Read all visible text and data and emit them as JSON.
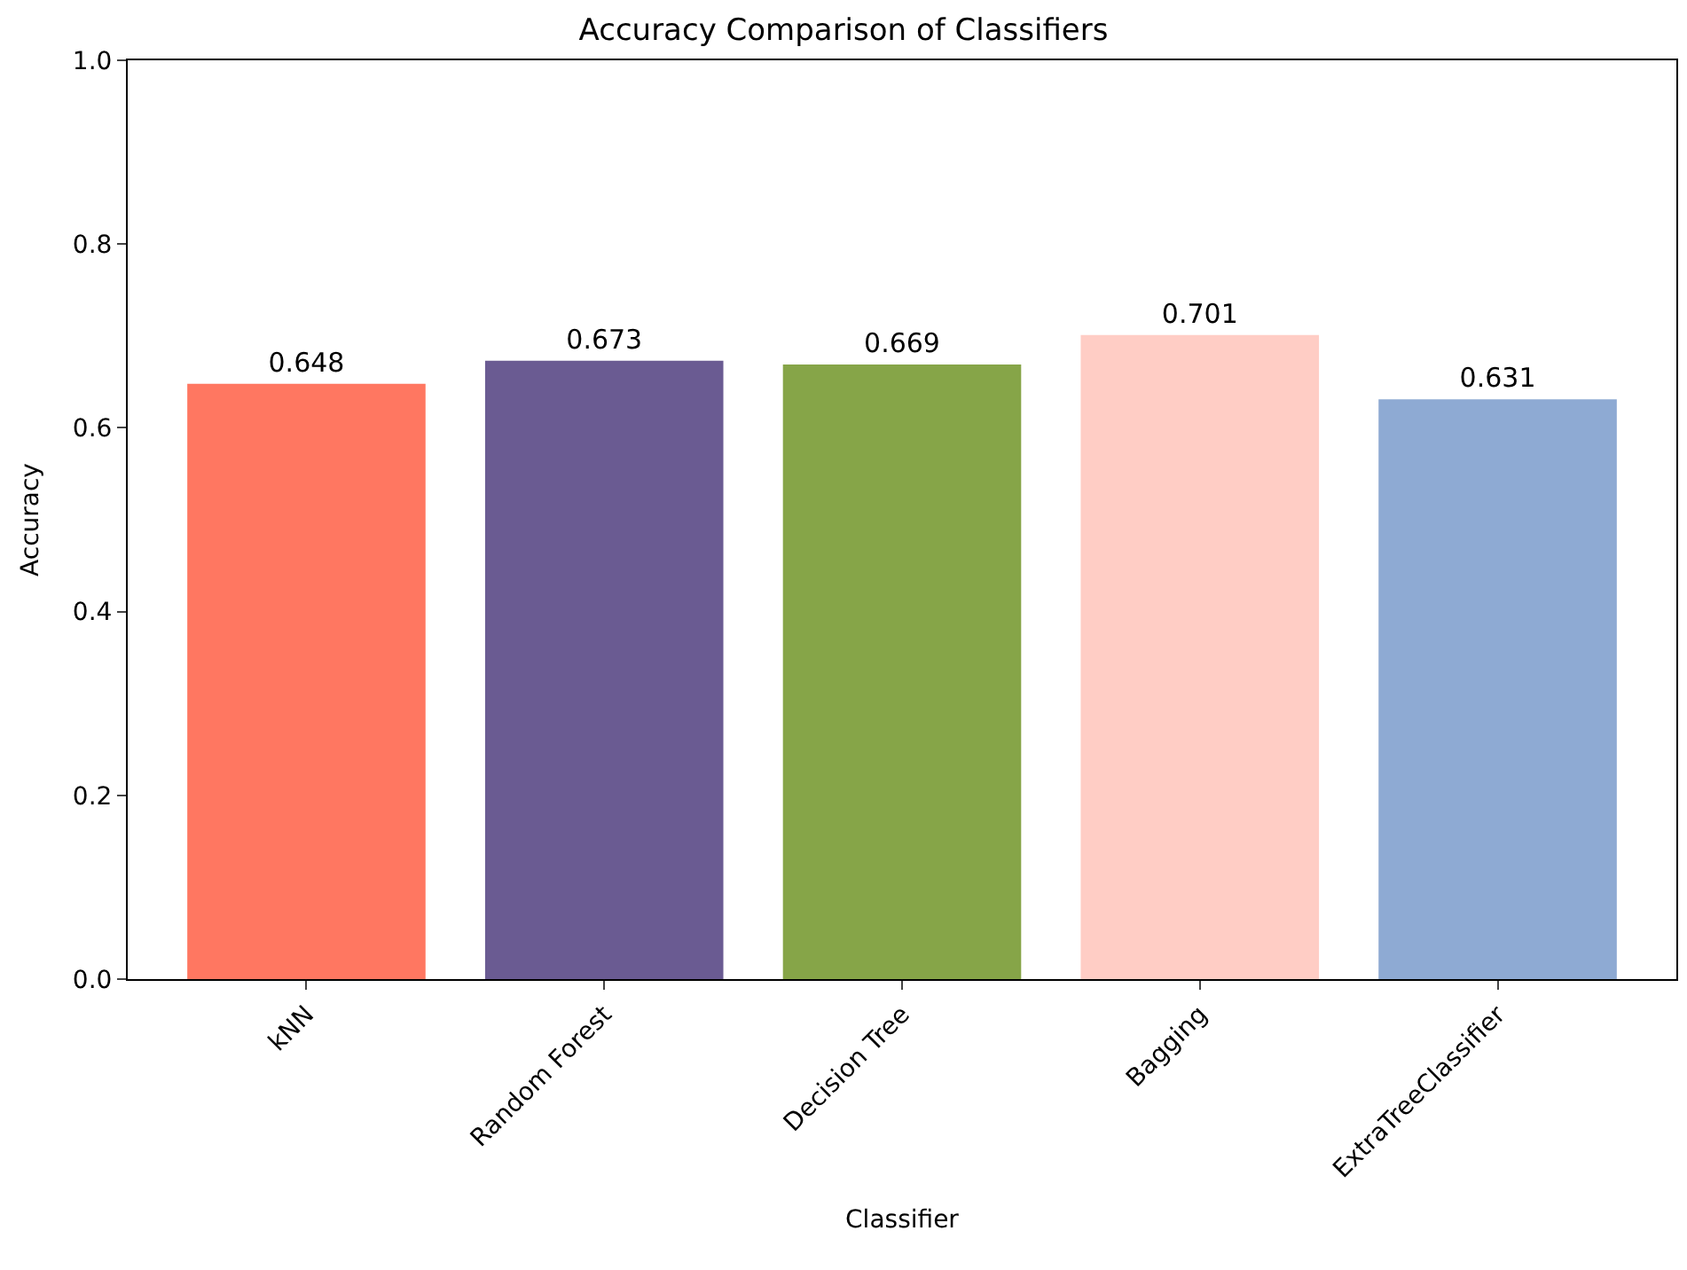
{
  "chart_data": {
    "type": "bar",
    "title": "Accuracy Comparison of Classifiers",
    "xlabel": "Classifier",
    "ylabel": "Accuracy",
    "categories": [
      "kNN",
      "Random Forest",
      "Decision Tree",
      "Bagging",
      "ExtraTreeClassifier"
    ],
    "values": [
      0.648,
      0.673,
      0.669,
      0.701,
      0.631
    ],
    "colors": [
      "#ff7761",
      "#6a5b92",
      "#86a548",
      "#ffcdc5",
      "#8eaad3"
    ],
    "ylim": [
      0,
      1.0
    ],
    "yticks": [
      {
        "value": 0,
        "label": "0.0"
      },
      {
        "value": 0.2,
        "label": "0.2"
      },
      {
        "value": 0.4,
        "label": "0.4"
      },
      {
        "value": 0.6,
        "label": "0.6"
      },
      {
        "value": 0.8,
        "label": "0.8"
      },
      {
        "value": 1.0,
        "label": "1.0"
      }
    ],
    "data_labels": true
  }
}
